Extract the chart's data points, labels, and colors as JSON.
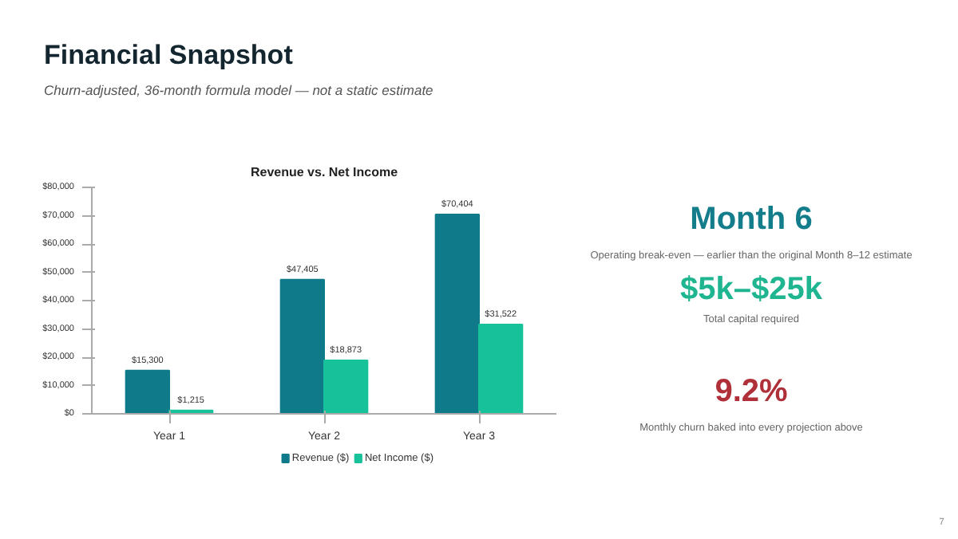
{
  "chart_data": [
    {
      "type": "other",
      "title": "Financial Snapshot",
      "subtitle": "Churn-adjusted, 36-month formula model — not a static estimate"
    },
    {
      "type": "bar",
      "title": "Revenue vs. Net Income",
      "categories": [
        "Year 1",
        "Year 2",
        "Year 3"
      ],
      "series": [
        {
          "name": "Revenue ($)",
          "color": "#0e7a8a",
          "values": [
            15300,
            47405,
            70404
          ],
          "value_labels": [
            "$15,300",
            "$47,405",
            "$70,404"
          ]
        },
        {
          "name": "Net Income ($)",
          "color": "#17c29a",
          "values": [
            1215,
            18873,
            31522
          ],
          "value_labels": [
            "$1,215",
            "$18,873",
            "$31,522"
          ]
        }
      ],
      "ylim": [
        0,
        80000
      ],
      "yticks": [
        {
          "value": 0,
          "label": "$0"
        },
        {
          "value": 10000,
          "label": "$10,000"
        },
        {
          "value": 20000,
          "label": "$20,000"
        },
        {
          "value": 30000,
          "label": "$30,000"
        },
        {
          "value": 40000,
          "label": "$40,000"
        },
        {
          "value": 50000,
          "label": "$50,000"
        },
        {
          "value": 60000,
          "label": "$60,000"
        },
        {
          "value": 70000,
          "label": "$70,000"
        },
        {
          "value": 80000,
          "label": "$80,000"
        }
      ],
      "grid": false,
      "legend": "bottom"
    },
    {
      "type": "other",
      "annotations": [
        "Month 6",
        "Operating break-even — earlier than the original Month 8–12 estimate",
        "$5k–$25k",
        "Total capital required",
        "9.2%",
        "Monthly churn baked into every projection above",
        "7"
      ]
    }
  ]
}
